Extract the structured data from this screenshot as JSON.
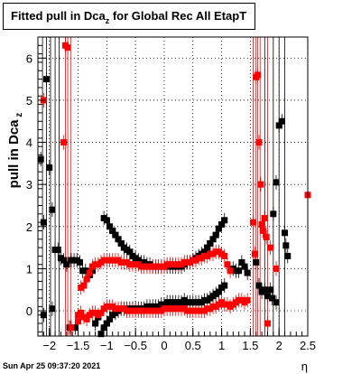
{
  "title": {
    "main": "Fitted pull in Dca",
    "sub": "z",
    "rest": " for Global Rec All EtapT"
  },
  "datestamp": "Sun Apr 25 09:37:20 2021",
  "chart_data": {
    "type": "scatter",
    "title": "Fitted pull in Dca_z for Global Rec All EtapT",
    "xlabel": "η",
    "ylabel": "pull in Dca",
    "ylabel_sub": "z",
    "xlim": [
      -2.2,
      2.5
    ],
    "ylim": [
      -0.6,
      6.5
    ],
    "grid": true,
    "x_ticks": [
      "−2",
      "−1.5",
      "−1",
      "−0.5",
      "0",
      "0.5",
      "1",
      "1.5",
      "2",
      "2.5"
    ],
    "x_tick_values": [
      -2,
      -1.5,
      -1,
      -0.5,
      0,
      0.5,
      1,
      1.5,
      2,
      2.5
    ],
    "y_ticks": [
      "0",
      "1",
      "2",
      "3",
      "4",
      "5",
      "6"
    ],
    "y_tick_values": [
      0,
      1,
      2,
      3,
      4,
      5,
      6
    ],
    "colors": {
      "black": "#000000",
      "red": "#ff0000"
    },
    "series": [
      {
        "color": "#000000",
        "marker": "square",
        "points": [
          [
            -2.15,
            3.6
          ],
          [
            -2.1,
            2.1
          ],
          [
            -2.05,
            5.5
          ],
          [
            -2.0,
            3.4
          ],
          [
            -1.95,
            2.4
          ],
          [
            -1.9,
            1.45
          ],
          [
            -1.85,
            1.45
          ],
          [
            -1.8,
            1.25
          ],
          [
            -1.75,
            1.2
          ],
          [
            -1.7,
            1.1
          ],
          [
            -1.62,
            1.2
          ],
          [
            -1.57,
            1.2
          ],
          [
            -1.52,
            1.2
          ],
          [
            -1.47,
            1.15
          ],
          [
            -1.42,
            0.95
          ],
          [
            -1.37,
            0.95
          ],
          [
            -1.3,
            0.85
          ],
          [
            -1.25,
            0.95
          ],
          [
            -1.05,
            2.2
          ],
          [
            -1.0,
            2.15
          ],
          [
            -0.95,
            2.0
          ],
          [
            -0.9,
            1.9
          ],
          [
            -0.85,
            1.8
          ],
          [
            -0.8,
            1.7
          ],
          [
            -0.75,
            1.6
          ],
          [
            -0.7,
            1.5
          ],
          [
            -0.65,
            1.45
          ],
          [
            -0.6,
            1.4
          ],
          [
            -0.55,
            1.3
          ],
          [
            -0.5,
            1.25
          ],
          [
            -0.45,
            1.2
          ],
          [
            -0.4,
            1.15
          ],
          [
            -0.35,
            1.15
          ],
          [
            -0.3,
            1.1
          ],
          [
            -0.25,
            1.1
          ],
          [
            -0.2,
            1.05
          ],
          [
            -0.15,
            1.05
          ],
          [
            -0.1,
            1.05
          ],
          [
            -0.05,
            1.05
          ],
          [
            0.0,
            1.05
          ],
          [
            0.05,
            1.05
          ],
          [
            0.1,
            1.05
          ],
          [
            0.15,
            1.05
          ],
          [
            0.2,
            1.05
          ],
          [
            0.25,
            1.05
          ],
          [
            0.3,
            1.05
          ],
          [
            0.35,
            1.1
          ],
          [
            0.4,
            1.15
          ],
          [
            0.45,
            1.15
          ],
          [
            0.5,
            1.2
          ],
          [
            0.55,
            1.25
          ],
          [
            0.6,
            1.3
          ],
          [
            0.65,
            1.35
          ],
          [
            0.7,
            1.4
          ],
          [
            0.75,
            1.5
          ],
          [
            0.8,
            1.6
          ],
          [
            0.85,
            1.7
          ],
          [
            0.9,
            1.8
          ],
          [
            0.95,
            1.95
          ],
          [
            1.0,
            2.05
          ],
          [
            1.05,
            2.15
          ],
          [
            1.2,
            1.0
          ],
          [
            1.25,
            0.95
          ],
          [
            1.3,
            0.95
          ],
          [
            1.35,
            1.15
          ],
          [
            1.4,
            1.05
          ],
          [
            1.45,
            0.9
          ],
          [
            -1.1,
            -0.55
          ],
          [
            -1.05,
            -0.4
          ],
          [
            -1.0,
            -0.3
          ],
          [
            -0.95,
            -0.2
          ],
          [
            -0.9,
            -0.1
          ],
          [
            -0.85,
            -0.05
          ],
          [
            -0.8,
            0.0
          ],
          [
            -0.75,
            0.05
          ],
          [
            -0.7,
            0.05
          ],
          [
            -0.65,
            0.05
          ],
          [
            -0.6,
            0.05
          ],
          [
            -0.55,
            0.05
          ],
          [
            -0.5,
            0.05
          ],
          [
            -0.45,
            0.05
          ],
          [
            -0.4,
            0.05
          ],
          [
            -0.35,
            0.05
          ],
          [
            -0.3,
            0.1
          ],
          [
            -0.25,
            0.1
          ],
          [
            -0.2,
            0.1
          ],
          [
            -0.15,
            0.1
          ],
          [
            -0.1,
            0.1
          ],
          [
            -0.05,
            0.15
          ],
          [
            0.0,
            0.15
          ],
          [
            0.05,
            0.2
          ],
          [
            0.1,
            0.2
          ],
          [
            0.15,
            0.2
          ],
          [
            0.2,
            0.2
          ],
          [
            0.25,
            0.2
          ],
          [
            0.3,
            0.2
          ],
          [
            0.35,
            0.25
          ],
          [
            0.4,
            0.2
          ],
          [
            0.45,
            0.2
          ],
          [
            0.5,
            0.2
          ],
          [
            0.55,
            0.2
          ],
          [
            0.6,
            0.2
          ],
          [
            0.65,
            0.2
          ],
          [
            0.7,
            0.25
          ],
          [
            0.75,
            0.25
          ],
          [
            0.8,
            0.3
          ],
          [
            0.85,
            0.35
          ],
          [
            0.9,
            0.4
          ],
          [
            0.95,
            0.45
          ],
          [
            1.0,
            0.55
          ],
          [
            1.05,
            0.6
          ],
          [
            -2.1,
            -0.1
          ],
          [
            -1.95,
            0.05
          ],
          [
            -1.65,
            -0.4
          ],
          [
            -1.55,
            -0.4
          ],
          [
            -1.2,
            -0.3
          ],
          [
            -1.15,
            -0.15
          ],
          [
            1.6,
            1.15
          ],
          [
            1.65,
            0.6
          ],
          [
            1.7,
            0.45
          ],
          [
            1.75,
            0.5
          ],
          [
            1.8,
            0.35
          ],
          [
            1.85,
            0.5
          ],
          [
            1.9,
            2.3
          ],
          [
            1.95,
            3.05
          ],
          [
            2.0,
            4.4
          ],
          [
            2.05,
            4.5
          ],
          [
            2.1,
            1.85
          ],
          [
            2.12,
            1.55
          ],
          [
            2.15,
            1.3
          ],
          [
            1.95,
            0.2
          ],
          [
            1.88,
            0.3
          ]
        ]
      },
      {
        "color": "#ff0000",
        "marker": "square",
        "points": [
          [
            -2.1,
            5.0
          ],
          [
            -1.75,
            4.0
          ],
          [
            -1.72,
            6.3
          ],
          [
            -1.68,
            6.25
          ],
          [
            -1.62,
            -0.4
          ],
          [
            -1.5,
            -0.25
          ],
          [
            -1.45,
            0.55
          ],
          [
            -1.4,
            0.6
          ],
          [
            -1.35,
            0.75
          ],
          [
            -1.3,
            0.9
          ],
          [
            -1.25,
            1.05
          ],
          [
            -1.2,
            1.1
          ],
          [
            -1.15,
            1.1
          ],
          [
            -1.1,
            1.15
          ],
          [
            -1.05,
            1.2
          ],
          [
            -1.0,
            1.2
          ],
          [
            -0.95,
            1.2
          ],
          [
            -0.9,
            1.2
          ],
          [
            -0.85,
            1.2
          ],
          [
            -0.8,
            1.2
          ],
          [
            -0.75,
            1.15
          ],
          [
            -0.7,
            1.15
          ],
          [
            -0.65,
            1.15
          ],
          [
            -0.6,
            1.1
          ],
          [
            -0.55,
            1.1
          ],
          [
            -0.5,
            1.1
          ],
          [
            -0.45,
            1.1
          ],
          [
            -0.4,
            1.05
          ],
          [
            -0.35,
            1.05
          ],
          [
            -0.3,
            1.05
          ],
          [
            -0.25,
            1.05
          ],
          [
            -0.2,
            1.05
          ],
          [
            -0.15,
            1.05
          ],
          [
            -0.1,
            1.05
          ],
          [
            -0.05,
            1.05
          ],
          [
            0.0,
            1.05
          ],
          [
            0.05,
            1.1
          ],
          [
            0.1,
            1.1
          ],
          [
            0.15,
            1.1
          ],
          [
            0.2,
            1.1
          ],
          [
            0.25,
            1.1
          ],
          [
            0.3,
            1.1
          ],
          [
            0.35,
            1.15
          ],
          [
            0.4,
            1.15
          ],
          [
            0.45,
            1.15
          ],
          [
            0.5,
            1.2
          ],
          [
            0.55,
            1.2
          ],
          [
            0.6,
            1.25
          ],
          [
            0.65,
            1.25
          ],
          [
            0.7,
            1.3
          ],
          [
            0.75,
            1.3
          ],
          [
            0.8,
            1.35
          ],
          [
            0.85,
            1.35
          ],
          [
            0.9,
            1.4
          ],
          [
            0.95,
            1.4
          ],
          [
            1.0,
            1.35
          ],
          [
            1.05,
            1.3
          ],
          [
            1.1,
            1.1
          ],
          [
            1.15,
            0.95
          ],
          [
            -1.5,
            -0.1
          ],
          [
            -1.45,
            -0.05
          ],
          [
            -1.4,
            -0.15
          ],
          [
            -1.35,
            -0.2
          ],
          [
            -1.3,
            -0.1
          ],
          [
            -1.25,
            -0.05
          ],
          [
            -1.2,
            -0.05
          ],
          [
            -1.15,
            -0.1
          ],
          [
            -1.1,
            -0.05
          ],
          [
            -1.05,
            0.05
          ],
          [
            -1.0,
            0.1
          ],
          [
            -0.95,
            0.1
          ],
          [
            -0.9,
            0.1
          ],
          [
            -0.85,
            0.05
          ],
          [
            -0.8,
            0.05
          ],
          [
            -0.75,
            0.05
          ],
          [
            -0.7,
            0.05
          ],
          [
            -0.65,
            0.0
          ],
          [
            -0.6,
            0.0
          ],
          [
            -0.55,
            0.0
          ],
          [
            -0.5,
            0.0
          ],
          [
            -0.45,
            0.0
          ],
          [
            -0.4,
            0.0
          ],
          [
            -0.35,
            0.0
          ],
          [
            -0.3,
            0.0
          ],
          [
            -0.25,
            0.0
          ],
          [
            -0.2,
            0.0
          ],
          [
            -0.15,
            0.0
          ],
          [
            -0.1,
            0.0
          ],
          [
            -0.05,
            0.0
          ],
          [
            0.0,
            0.05
          ],
          [
            0.05,
            0.05
          ],
          [
            0.1,
            0.05
          ],
          [
            0.15,
            0.05
          ],
          [
            0.2,
            0.05
          ],
          [
            0.25,
            0.05
          ],
          [
            0.3,
            0.05
          ],
          [
            0.35,
            0.05
          ],
          [
            0.4,
            0.0
          ],
          [
            0.45,
            0.0
          ],
          [
            0.5,
            0.0
          ],
          [
            0.55,
            0.0
          ],
          [
            0.6,
            0.0
          ],
          [
            0.65,
            0.0
          ],
          [
            0.7,
            0.0
          ],
          [
            0.75,
            0.05
          ],
          [
            0.8,
            0.05
          ],
          [
            0.85,
            0.1
          ],
          [
            0.9,
            0.1
          ],
          [
            0.95,
            0.15
          ],
          [
            1.0,
            0.2
          ],
          [
            1.05,
            0.15
          ],
          [
            1.1,
            0.15
          ],
          [
            1.15,
            0.1
          ],
          [
            1.2,
            0.15
          ],
          [
            1.25,
            0.2
          ],
          [
            1.3,
            0.25
          ],
          [
            1.35,
            0.25
          ],
          [
            1.4,
            0.2
          ],
          [
            1.45,
            0.25
          ],
          [
            1.55,
            2.1
          ],
          [
            1.58,
            1.35
          ],
          [
            1.6,
            5.55
          ],
          [
            1.63,
            5.6
          ],
          [
            1.65,
            4.0
          ],
          [
            1.68,
            3.0
          ],
          [
            1.7,
            2.05
          ],
          [
            1.72,
            1.9
          ],
          [
            1.75,
            2.2
          ],
          [
            1.78,
            1.75
          ],
          [
            1.8,
            -0.3
          ],
          [
            1.85,
            1.5
          ],
          [
            1.95,
            1.0
          ],
          [
            2.5,
            2.75
          ]
        ]
      }
    ]
  }
}
